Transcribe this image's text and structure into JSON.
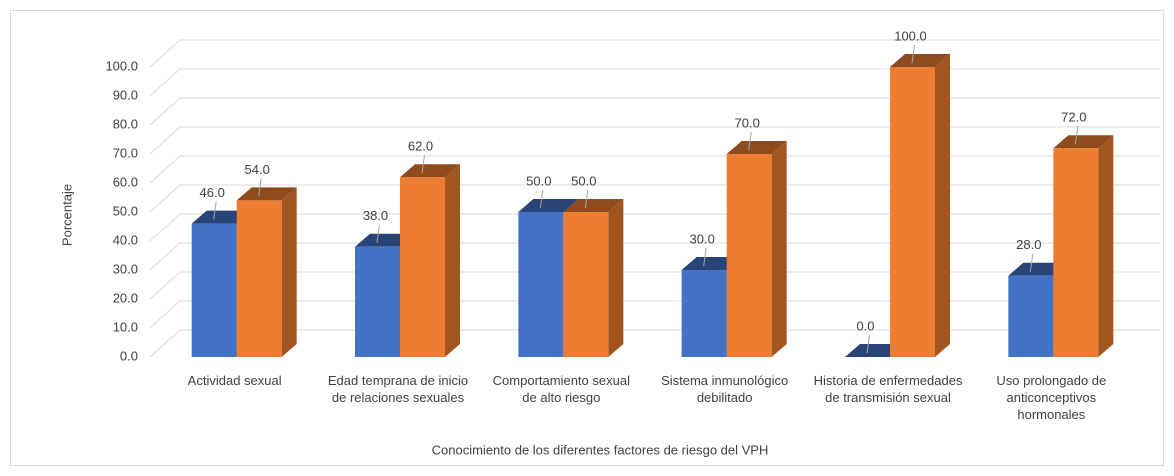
{
  "chart_data": {
    "type": "bar3d",
    "x_label": "Conocimiento de los diferentes factores de riesgo del VPH",
    "y_label": "Porcentaje",
    "categories": [
      "Actividad sexual",
      "Edad temprana de inicio de relaciones sexuales",
      "Comportamiento sexual de alto riesgo",
      "Sistema inmunológico debilitado",
      "Historia de enfermedades de transmisión sexual",
      "Uso prolongado de anticonceptivos hormonales"
    ],
    "series": [
      {
        "color": "#4472c4",
        "values": [
          46,
          38,
          50,
          30,
          0,
          28
        ],
        "value_labels": [
          "46.0",
          "38.0",
          "50.0",
          "30.0",
          "0.0",
          "28.0"
        ]
      },
      {
        "color": "#ed7d31",
        "values": [
          54,
          62,
          50,
          70,
          100,
          72
        ],
        "value_labels": [
          "54.0",
          "62.0",
          "50.0",
          "70.0",
          "100.0",
          "72.0"
        ]
      }
    ],
    "ylim": [
      0,
      100
    ],
    "yticks": [
      {
        "value": 0,
        "label": "0.0"
      },
      {
        "value": 10,
        "label": "10.0"
      },
      {
        "value": 20,
        "label": "20.0"
      },
      {
        "value": 30,
        "label": "30.0"
      },
      {
        "value": 40,
        "label": "40.0"
      },
      {
        "value": 50,
        "label": "50.0"
      },
      {
        "value": 60,
        "label": "60.0"
      },
      {
        "value": 70,
        "label": "70.0"
      },
      {
        "value": 80,
        "label": "80.0"
      },
      {
        "value": 90,
        "label": "90.0"
      },
      {
        "value": 100,
        "label": "100.0"
      }
    ],
    "grid": true
  }
}
